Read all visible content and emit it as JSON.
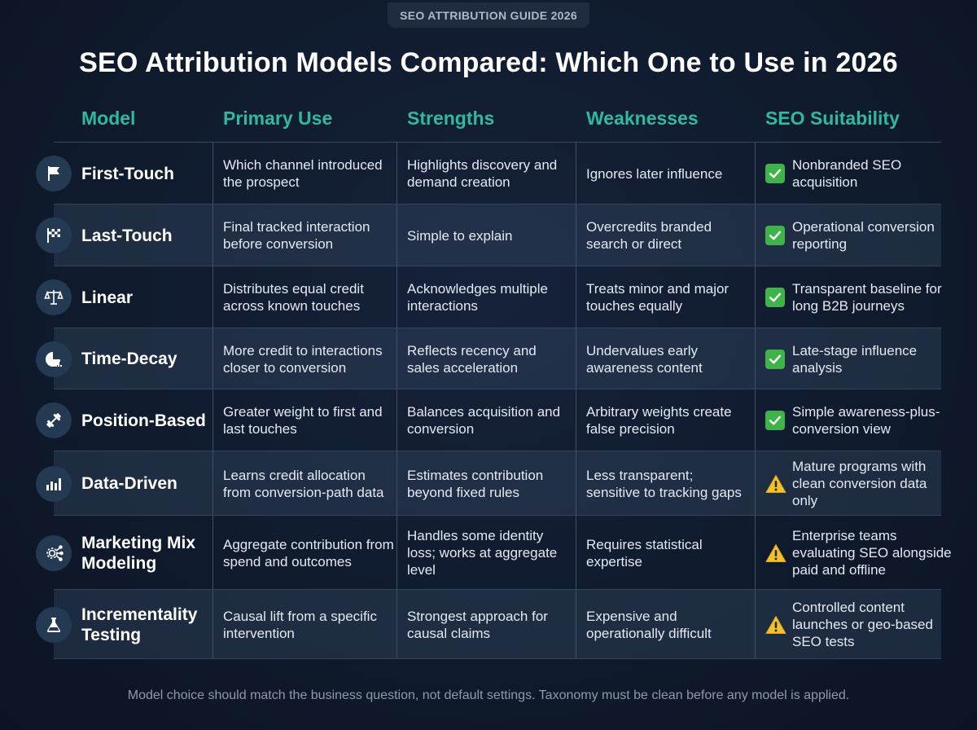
{
  "badge": "SEO ATTRIBUTION GUIDE 2026",
  "title": "SEO Attribution Models Compared: Which One to Use in 2026",
  "headers": {
    "model": "Model",
    "primary_use": "Primary Use",
    "strengths": "Strengths",
    "weaknesses": "Weaknesses",
    "suitability": "SEO Suitability"
  },
  "rows": [
    {
      "icon": "flag-icon",
      "model": "First-Touch",
      "primary_use": "Which channel introduced the prospect",
      "strengths": "Highlights discovery and demand creation",
      "weaknesses": "Ignores later influence",
      "status": "check",
      "suitability": "Nonbranded SEO acquisition"
    },
    {
      "icon": "checkered-flag-icon",
      "model": "Last-Touch",
      "primary_use": "Final tracked interaction before conversion",
      "strengths": "Simple to explain",
      "weaknesses": "Overcredits branded search or direct",
      "status": "check",
      "suitability": "Operational conversion reporting"
    },
    {
      "icon": "scales-icon",
      "model": "Linear",
      "primary_use": "Distributes equal credit across known touches",
      "strengths": "Acknowledges multiple interactions",
      "weaknesses": "Treats minor and major touches equally",
      "status": "check",
      "suitability": "Transparent baseline for long B2B journeys"
    },
    {
      "icon": "time-decay-icon",
      "model": "Time-Decay",
      "primary_use": "More credit to interactions closer to conversion",
      "strengths": "Reflects recency and sales acceleration",
      "weaknesses": "Undervalues early awareness content",
      "status": "check",
      "suitability": "Late-stage influence analysis"
    },
    {
      "icon": "dumbbell-icon",
      "model": "Position-Based",
      "primary_use": "Greater weight to first and last touches",
      "strengths": "Balances acquisition and conversion",
      "weaknesses": "Arbitrary weights create false precision",
      "status": "check",
      "suitability": "Simple awareness-plus-conversion view"
    },
    {
      "icon": "bar-chart-icon",
      "model": "Data-Driven",
      "primary_use": "Learns credit allocation from conversion-path data",
      "strengths": "Estimates contribution beyond fixed rules",
      "weaknesses": "Less transparent; sensitive to tracking gaps",
      "status": "warning",
      "suitability": "Mature programs with clean conversion data only"
    },
    {
      "icon": "network-gear-icon",
      "model": "Marketing Mix Modeling",
      "primary_use": "Aggregate contribution from spend and outcomes",
      "strengths": "Handles some identity loss; works at aggregate level",
      "weaknesses": "Requires statistical expertise",
      "status": "warning",
      "suitability": "Enterprise teams evaluating SEO alongside paid and offline"
    },
    {
      "icon": "flask-icon",
      "model": "Incrementality Testing",
      "primary_use": "Causal lift from a specific intervention",
      "strengths": "Strongest approach for causal claims",
      "weaknesses": "Expensive and operationally difficult",
      "status": "warning",
      "suitability": "Controlled content launches or geo-based SEO tests"
    }
  ],
  "footer": "Model choice should match the business question, not default settings. Taxonomy must be clean before any model is applied."
}
